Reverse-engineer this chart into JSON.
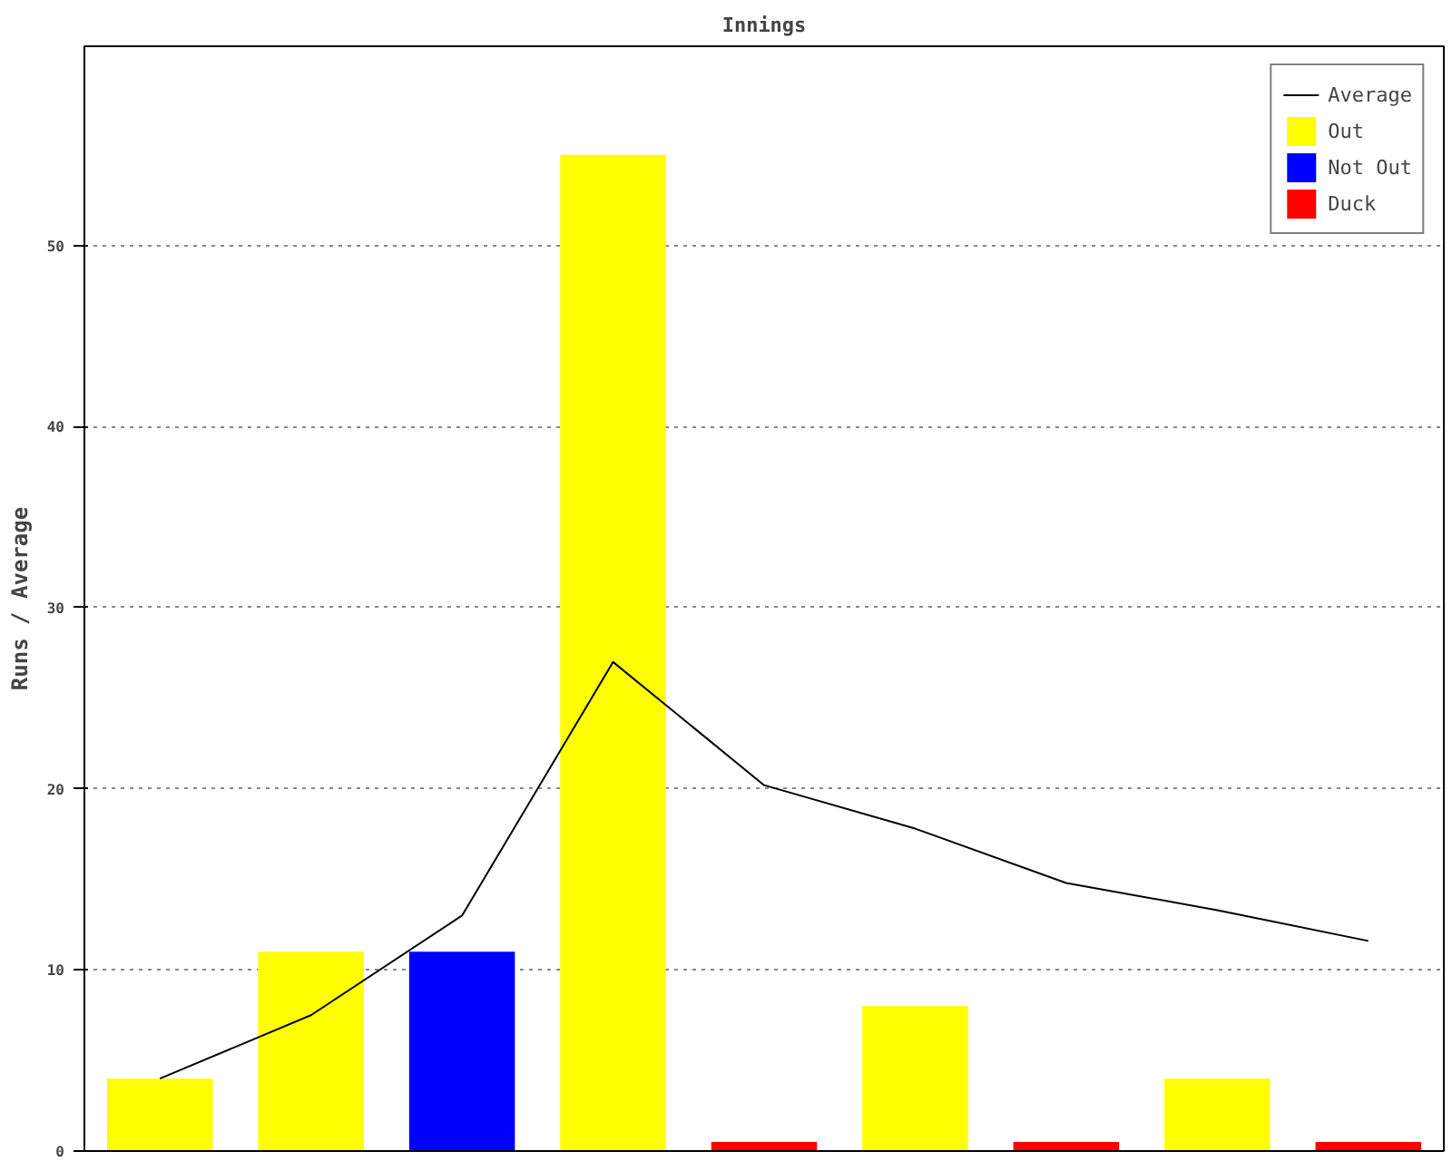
{
  "chart_data": {
    "type": "bar",
    "title": "Innings",
    "ylabel": "Runs / Average",
    "categories": [
      null,
      null,
      null,
      null,
      null,
      null,
      null,
      null,
      null
    ],
    "series": [
      {
        "name": "Average",
        "type": "line",
        "color": "#000000",
        "values": [
          4,
          7.5,
          13,
          27,
          20.2,
          17.8,
          14.8,
          13.3,
          11.6
        ]
      },
      {
        "name": "Out",
        "color": "#ffff00",
        "values": [
          4,
          11,
          null,
          55,
          null,
          8,
          null,
          4,
          null
        ]
      },
      {
        "name": "Not Out",
        "color": "#0000ff",
        "values": [
          null,
          null,
          11,
          null,
          null,
          null,
          null,
          null,
          null
        ]
      },
      {
        "name": "Duck",
        "color": "#ff0000",
        "values": [
          null,
          null,
          null,
          null,
          0.5,
          null,
          0.5,
          null,
          0.5
        ]
      }
    ],
    "ylim": [
      0,
      61
    ],
    "yticks": [
      0,
      10,
      20,
      30,
      40,
      50
    ],
    "grid": "y",
    "legend": "top right"
  }
}
